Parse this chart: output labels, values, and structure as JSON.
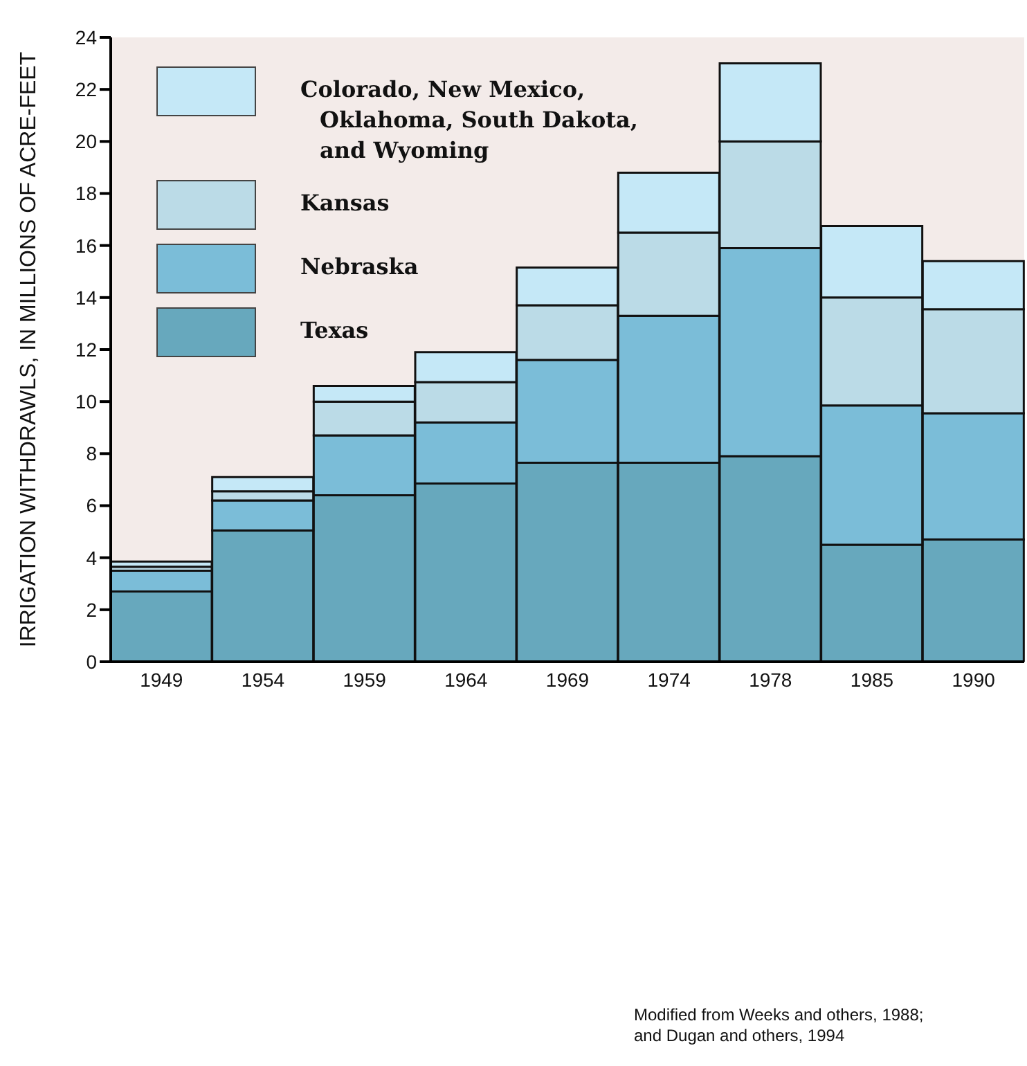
{
  "chart_data": {
    "type": "bar",
    "stacked": true,
    "ylabel": "IRRIGATION WITHDRAWLS, IN MILLIONS OF ACRE-FEET",
    "categories": [
      "1949",
      "1954",
      "1959",
      "1964",
      "1969",
      "1974",
      "1978",
      "1985",
      "1990"
    ],
    "series": [
      {
        "name": "Texas",
        "color": "#67a8bd",
        "values": [
          2.7,
          5.05,
          6.4,
          6.85,
          7.65,
          7.65,
          7.9,
          4.5,
          4.7
        ]
      },
      {
        "name": "Nebraska",
        "color": "#7bbdd8",
        "values": [
          0.8,
          1.15,
          2.3,
          2.35,
          3.95,
          5.65,
          8.0,
          5.35,
          4.85
        ]
      },
      {
        "name": "Kansas",
        "color": "#bbdbe7",
        "values": [
          0.15,
          0.35,
          1.3,
          1.55,
          2.1,
          3.2,
          4.1,
          4.15,
          4.0
        ]
      },
      {
        "name": "Colorado, New Mexico,\nOklahoma, South Dakota,\nand Wyoming",
        "color": "#c5e8f7",
        "values": [
          0.2,
          0.55,
          0.6,
          1.15,
          1.45,
          2.3,
          3.0,
          2.75,
          1.85
        ]
      }
    ],
    "ylim": [
      0,
      24
    ],
    "yticks": [
      0,
      2,
      4,
      6,
      8,
      10,
      12,
      14,
      16,
      18,
      20,
      22,
      24
    ],
    "legend": "top left",
    "annotations": [
      "Modified from Weeks and others, 1988;\nand Dugan and others, 1994"
    ]
  }
}
